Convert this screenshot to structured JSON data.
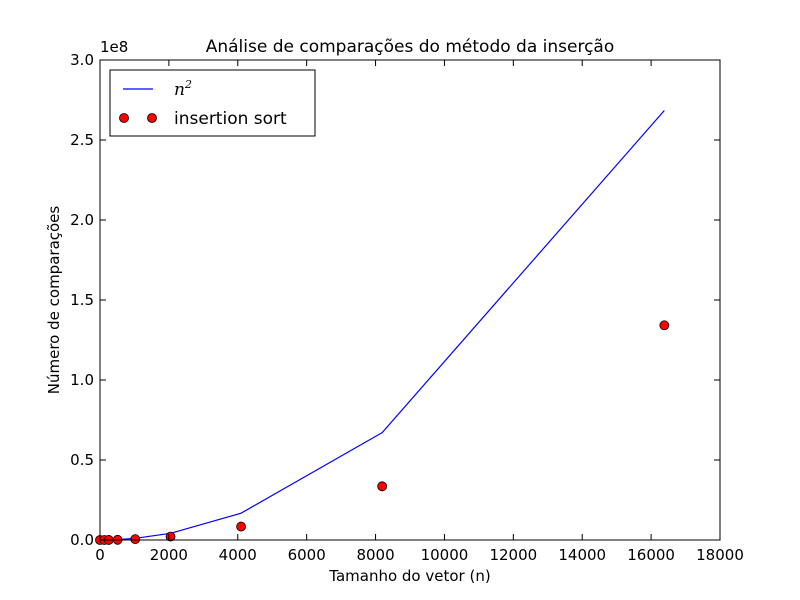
{
  "chart_data": {
    "type": "line",
    "title": "Análise de comparações do método da inserção",
    "xlabel": "Tamanho do vetor (n)",
    "ylabel": "Número de comparações",
    "y_offset_label": "1e8",
    "xlim": [
      0,
      18000
    ],
    "ylim": [
      0,
      3.0
    ],
    "y_scale_factor": 100000000,
    "xticks": [
      0,
      2000,
      4000,
      6000,
      8000,
      10000,
      12000,
      14000,
      16000,
      18000
    ],
    "yticks": [
      0.0,
      0.5,
      1.0,
      1.5,
      2.0,
      2.5,
      3.0
    ],
    "ytick_labels": [
      "0.0",
      "0.5",
      "1.0",
      "1.5",
      "2.0",
      "2.5",
      "3.0"
    ],
    "legend_position": "top-left",
    "series": [
      {
        "name": "n^2",
        "kind": "line",
        "color": "#0000ff",
        "x": [
          0,
          128,
          256,
          512,
          1024,
          2048,
          4096,
          8192,
          16384
        ],
        "y": [
          0,
          0.00016384,
          0.00065536,
          0.00262144,
          0.01048576,
          0.04194304,
          0.16777216,
          0.67108864,
          2.68435456
        ]
      },
      {
        "name": "insertion sort",
        "kind": "scatter",
        "color": "#ff0000",
        "x": [
          0,
          128,
          256,
          512,
          1024,
          2048,
          4096,
          8192,
          16384
        ],
        "y": [
          0,
          8.19e-05,
          0.000327,
          0.00131,
          0.00524,
          0.021,
          0.0839,
          0.3355,
          1.342
        ]
      }
    ]
  },
  "legend": {
    "line_label_base": "n",
    "line_label_sup": "2",
    "scatter_label": "insertion sort"
  }
}
